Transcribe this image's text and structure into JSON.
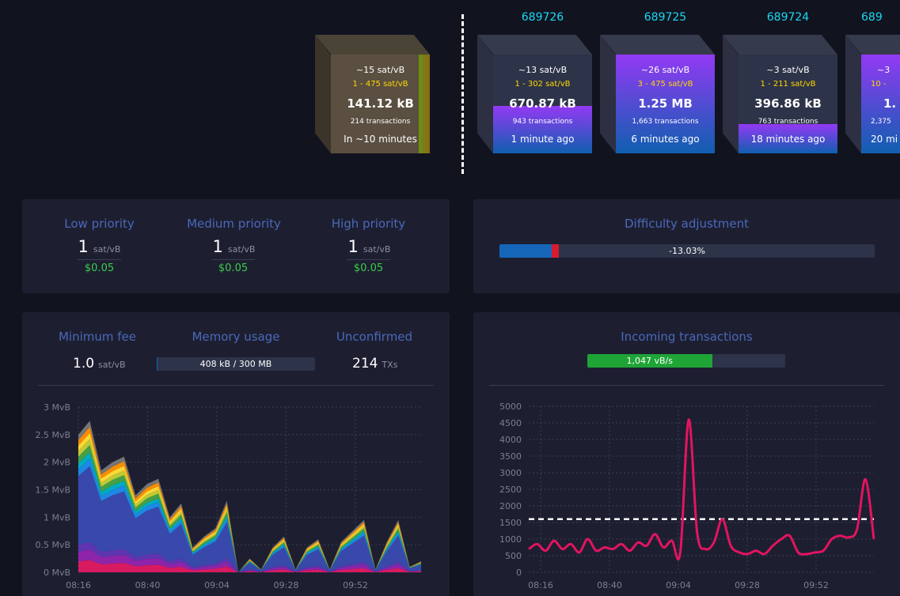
{
  "blocks": {
    "pending": {
      "fee": "~15 sat/vB",
      "range": "1 - 475 sat/vB",
      "size": "141.12 kB",
      "transactions": "214 transactions",
      "time": "In ~10 minutes"
    },
    "mined": [
      {
        "height": "689726",
        "fee": "~13 sat/vB",
        "range": "1 - 302 sat/vB",
        "size": "670.87 kB",
        "transactions": "943 transactions",
        "time": "1 minute ago",
        "fill": 0.48
      },
      {
        "height": "689725",
        "fee": "~26 sat/vB",
        "range": "3 - 475 sat/vB",
        "size": "1.25 MB",
        "transactions": "1,663 transactions",
        "time": "6 minutes ago",
        "fill": 1.0
      },
      {
        "height": "689724",
        "fee": "~3 sat/vB",
        "range": "1 - 211 sat/vB",
        "size": "396.86 kB",
        "transactions": "763 transactions",
        "time": "18 minutes ago",
        "fill": 0.3
      },
      {
        "height": "689",
        "fee": "~3",
        "range": "10 -",
        "size": "1.",
        "transactions": "2,375",
        "time": "20 mi",
        "fill": 1.0
      }
    ]
  },
  "fees": {
    "low": {
      "label": "Low priority",
      "value": "1",
      "unit": "sat/vB",
      "usd": "$0.05"
    },
    "medium": {
      "label": "Medium priority",
      "value": "1",
      "unit": "sat/vB",
      "usd": "$0.05"
    },
    "high": {
      "label": "High priority",
      "value": "1",
      "unit": "sat/vB",
      "usd": "$0.05"
    }
  },
  "difficulty": {
    "title": "Difficulty adjustment",
    "label": "-13.03%",
    "progress": 0.14
  },
  "mempool": {
    "min_fee_label": "Minimum fee",
    "min_fee_value": "1.0",
    "min_fee_unit": "sat/vB",
    "memory_label": "Memory usage",
    "memory_value": "408 kB / 300 MB",
    "memory_progress": 0.001,
    "unconfirmed_label": "Unconfirmed",
    "unconfirmed_value": "214",
    "unconfirmed_unit": "TXs"
  },
  "incoming": {
    "title": "Incoming transactions",
    "rate": "1,047 vB/s",
    "progress": 0.63
  },
  "colors": {
    "accent": "#1bd8f4",
    "title": "#4a68b9",
    "usd": "#3bcc49",
    "block_gradient_top": "#9339f4",
    "block_gradient_bottom": "#105fb0",
    "incoming_line": "#e2145f",
    "rate_bar": "#3bcc49",
    "difficulty_bar": "#1566b9",
    "difficulty_marker": "#d81b2e"
  },
  "chart_data": [
    {
      "type": "area",
      "title": "",
      "ylabel": "",
      "y_ticks": [
        "3 MvB",
        "2.5 MvB",
        "2 MvB",
        "1.5 MvB",
        "1 MvB",
        "0.5 MvB",
        "0 MvB"
      ],
      "x_ticks": [
        "08:16",
        "08:40",
        "09:04",
        "09:28",
        "09:52"
      ],
      "ylim": [
        0,
        3
      ],
      "x": [
        0,
        4,
        8,
        12,
        16,
        20,
        24,
        28,
        32,
        36,
        40,
        44,
        48,
        52,
        56,
        60,
        64,
        68,
        72,
        76,
        80,
        84,
        88,
        92,
        96,
        100,
        104,
        108,
        112,
        116,
        120
      ],
      "total_mvb": [
        2.5,
        2.75,
        1.85,
        2.0,
        2.1,
        1.4,
        1.6,
        1.7,
        1.0,
        1.25,
        0.45,
        0.65,
        0.8,
        1.3,
        0.0,
        0.25,
        0.05,
        0.45,
        0.65,
        0.05,
        0.45,
        0.6,
        0.05,
        0.55,
        0.75,
        0.95,
        0.05,
        0.55,
        0.95,
        0.1,
        0.2
      ],
      "series": [
        {
          "name": "",
          "color": "#d81b60",
          "share": 0.08
        },
        {
          "name": "",
          "color": "#8e24aa",
          "share": 0.07
        },
        {
          "name": "",
          "color": "#5e35b1",
          "share": 0.05
        },
        {
          "name": "",
          "color": "#3949ab",
          "share": 0.5
        },
        {
          "name": "",
          "color": "#1e88e5",
          "share": 0.05
        },
        {
          "name": "",
          "color": "#00acc1",
          "share": 0.04
        },
        {
          "name": "",
          "color": "#43a047",
          "share": 0.05
        },
        {
          "name": "",
          "color": "#c0ca33",
          "share": 0.04
        },
        {
          "name": "",
          "color": "#fdd835",
          "share": 0.04
        },
        {
          "name": "",
          "color": "#fb8c00",
          "share": 0.04
        },
        {
          "name": "",
          "color": "#757575",
          "share": 0.04
        }
      ]
    },
    {
      "type": "line",
      "title": "",
      "ylabel": "",
      "y_ticks": [
        "5000",
        "4500",
        "4000",
        "3500",
        "3000",
        "2500",
        "2000",
        "1500",
        "1000",
        "500",
        "0"
      ],
      "x_ticks": [
        "08:16",
        "08:40",
        "09:04",
        "09:28",
        "09:52"
      ],
      "ylim": [
        0,
        5000
      ],
      "reference_line": 1600,
      "x": [
        0,
        3,
        6,
        9,
        12,
        15,
        18,
        21,
        24,
        27,
        30,
        33,
        36,
        39,
        42,
        45,
        48,
        51,
        54,
        57,
        60,
        63,
        66,
        69,
        72,
        75,
        78,
        81,
        84,
        87,
        90,
        93,
        96,
        99,
        102,
        105,
        108,
        111,
        114,
        117,
        120,
        123
      ],
      "values": [
        700,
        850,
        650,
        950,
        700,
        850,
        600,
        1000,
        650,
        750,
        700,
        850,
        650,
        900,
        800,
        1150,
        750,
        950,
        600,
        4600,
        1200,
        700,
        900,
        1600,
        800,
        600,
        550,
        650,
        550,
        800,
        1000,
        1100,
        600,
        550,
        600,
        650,
        1000,
        1100,
        1050,
        1300,
        2800,
        1000
      ]
    }
  ]
}
